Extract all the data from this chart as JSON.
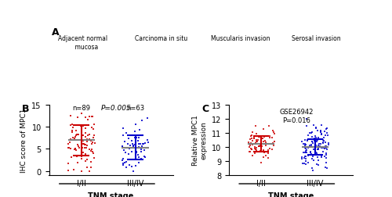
{
  "panel_B": {
    "title": "B",
    "group1_label": "I/II",
    "group2_label": "III/IV",
    "xlabel": "TNM stage",
    "ylabel": "IHC score of MPC1",
    "n1": 89,
    "n2": 63,
    "pvalue": "P=0.005",
    "ylim": [
      -1,
      15
    ],
    "yticks": [
      0,
      5,
      10,
      15
    ],
    "group1_mean": 6.9,
    "group1_sd": 3.5,
    "group2_mean": 5.3,
    "group2_sd": 2.8,
    "color1": "#CC0000",
    "color2": "#0000CC"
  },
  "panel_C": {
    "title": "C",
    "group1_label": "I/II",
    "group2_label": "III/IV",
    "xlabel": "TNM stage",
    "ylabel": "Relative MPC1\nexpression",
    "annotation": "GSE26942\nP=0.016",
    "ylim": [
      8,
      13
    ],
    "yticks": [
      8,
      9,
      10,
      11,
      12,
      13
    ],
    "group1_mean": 10.2,
    "group1_sd": 0.55,
    "group2_mean": 10.0,
    "group2_sd": 0.55,
    "color1": "#CC0000",
    "color2": "#0000CC"
  }
}
